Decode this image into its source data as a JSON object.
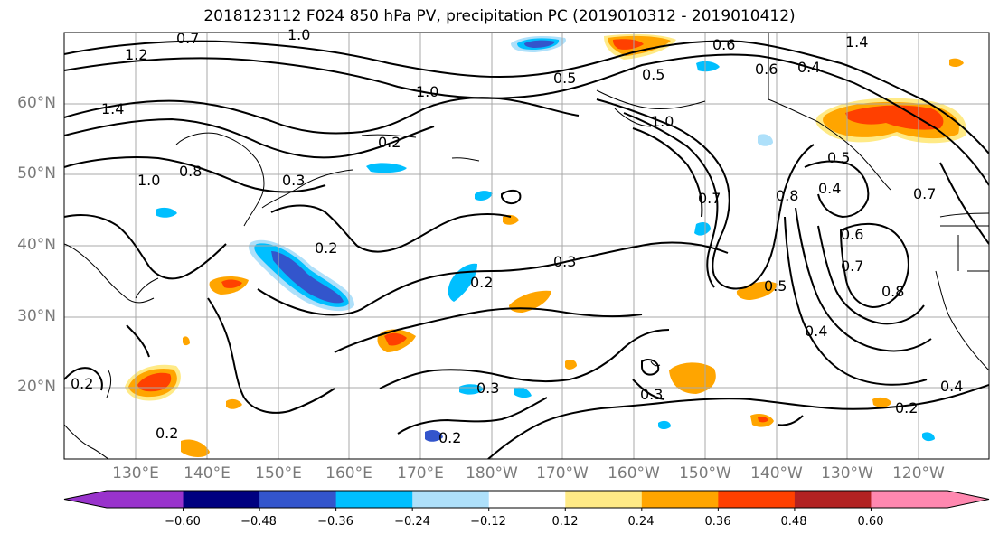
{
  "title": "2018123112 F024 850 hPa PV, precipitation PC (2019010312 - 2019010412)",
  "lat_labels": [
    "60°N",
    "50°N",
    "40°N",
    "30°N",
    "20°N"
  ],
  "lon_labels": [
    "130°E",
    "140°E",
    "150°E",
    "160°E",
    "170°E",
    "180°W",
    "170°W",
    "160°W",
    "150°W",
    "140°W",
    "130°W",
    "120°W"
  ],
  "contour_labels": [
    "0.7",
    "1.0",
    "1.2",
    "1.4",
    "1.0",
    "0.8",
    "1.0",
    "0.2",
    "0.2",
    "0.3",
    "0.2",
    "0.3",
    "0.4",
    "0.2",
    "0.3",
    "0.3",
    "0.2",
    "0.2",
    "0.4",
    "0.6",
    "0.6",
    "0.4",
    "0.8",
    "0.4",
    "0.5",
    "0.5",
    "0.7",
    "0.7",
    "0.8",
    "0.6",
    "0.7",
    "0.5",
    "0.5",
    "1.0",
    "1.4",
    "0.2"
  ],
  "colorbar": {
    "ticks": [
      "−0.60",
      "−0.48",
      "−0.36",
      "−0.24",
      "−0.12",
      "0.12",
      "0.24",
      "0.36",
      "0.48",
      "0.60"
    ],
    "colors": [
      "#9933cc",
      "#000080",
      "#3355cc",
      "#00bfff",
      "#aee0fa",
      "#ffffff",
      "#ffea86",
      "#ffa500",
      "#ff4000",
      "#b22222",
      "#ff88b0"
    ],
    "min_arrow": "#9933cc",
    "max_arrow": "#ff88b0"
  }
}
